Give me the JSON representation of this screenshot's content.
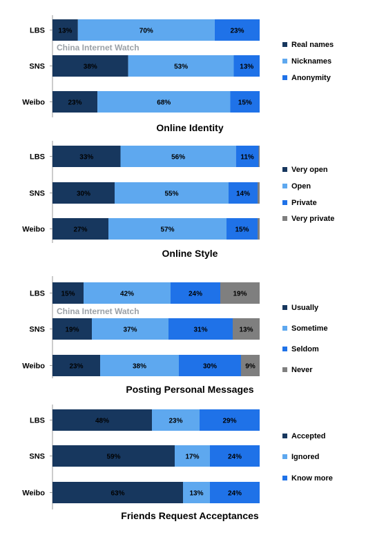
{
  "watermark": "China Internet Watch",
  "chart_data": [
    {
      "type": "bar",
      "stacked": true,
      "orientation": "horizontal",
      "title": "Online Identity",
      "categories": [
        "LBS",
        "SNS",
        "Weibo"
      ],
      "series": [
        {
          "name": "Real names",
          "color": "#17375e",
          "values": [
            13,
            38,
            23
          ]
        },
        {
          "name": "Nicknames",
          "color": "#5ea8ef",
          "values": [
            70,
            53,
            68
          ]
        },
        {
          "name": "Anonymity",
          "color": "#1f72e8",
          "values": [
            23,
            13,
            15
          ]
        }
      ],
      "value_labels": [
        [
          "13%",
          "70%",
          "23%"
        ],
        [
          "38%",
          "53%",
          "13%"
        ],
        [
          "23%",
          "68%",
          "15%"
        ]
      ],
      "watermark_shown": true
    },
    {
      "type": "bar",
      "stacked": true,
      "orientation": "horizontal",
      "title": "Online Style",
      "categories": [
        "LBS",
        "SNS",
        "Weibo"
      ],
      "series": [
        {
          "name": "Very open",
          "color": "#17375e",
          "values": [
            33,
            30,
            27
          ]
        },
        {
          "name": "Open",
          "color": "#5ea8ef",
          "values": [
            56,
            55,
            57
          ]
        },
        {
          "name": "Private",
          "color": "#1f72e8",
          "values": [
            11,
            14,
            15
          ]
        },
        {
          "name": "Very private",
          "color": "#7f7f7f",
          "values": [
            0.5,
            1,
            1
          ]
        }
      ],
      "value_labels": [
        [
          "33%",
          "56%",
          "11%",
          ""
        ],
        [
          "30%",
          "55%",
          "14%",
          ""
        ],
        [
          "27%",
          "57%",
          "15%",
          ""
        ]
      ],
      "watermark_shown": false
    },
    {
      "type": "bar",
      "stacked": true,
      "orientation": "horizontal",
      "title": "Posting Personal Messages",
      "categories": [
        "LBS",
        "SNS",
        "Weibo"
      ],
      "series": [
        {
          "name": "Usually",
          "color": "#17375e",
          "values": [
            15,
            19,
            23
          ]
        },
        {
          "name": "Sometime",
          "color": "#5ea8ef",
          "values": [
            42,
            37,
            38
          ]
        },
        {
          "name": "Seldom",
          "color": "#1f72e8",
          "values": [
            24,
            31,
            30
          ]
        },
        {
          "name": "Never",
          "color": "#7f7f7f",
          "values": [
            19,
            13,
            9
          ]
        }
      ],
      "value_labels": [
        [
          "15%",
          "42%",
          "24%",
          "19%"
        ],
        [
          "19%",
          "37%",
          "31%",
          "13%"
        ],
        [
          "23%",
          "38%",
          "30%",
          "9%"
        ]
      ],
      "watermark_shown": true
    },
    {
      "type": "bar",
      "stacked": true,
      "orientation": "horizontal",
      "title": "Friends Request Acceptances",
      "categories": [
        "LBS",
        "SNS",
        "Weibo"
      ],
      "series": [
        {
          "name": "Accepted",
          "color": "#17375e",
          "values": [
            48,
            59,
            63
          ]
        },
        {
          "name": "Ignored",
          "color": "#5ea8ef",
          "values": [
            23,
            17,
            13
          ]
        },
        {
          "name": "Know more",
          "color": "#1f72e8",
          "values": [
            29,
            24,
            24
          ]
        }
      ],
      "value_labels": [
        [
          "48%",
          "23%",
          "29%"
        ],
        [
          "59%",
          "17%",
          "24%"
        ],
        [
          "63%",
          "13%",
          "24%"
        ]
      ],
      "watermark_shown": false
    }
  ]
}
